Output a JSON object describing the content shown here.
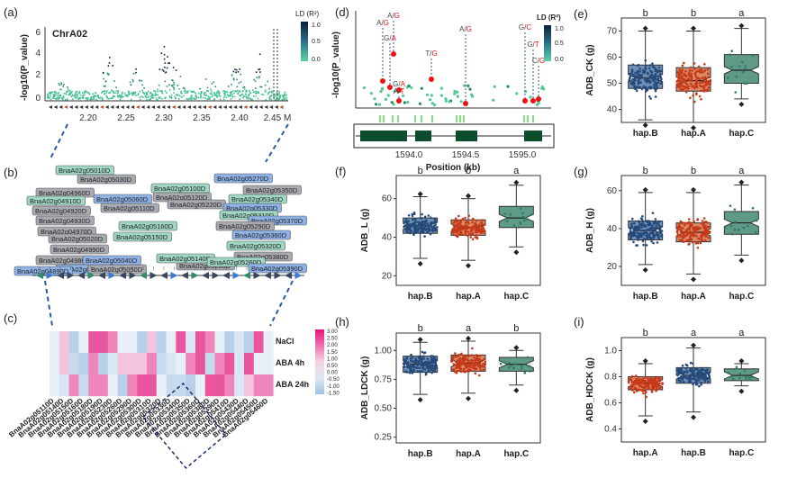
{
  "panels": {
    "a": {
      "label": "(a)",
      "chrom": "ChrA02",
      "ylabel": "-log10(P_value)",
      "yticks": [
        "0",
        "2",
        "4",
        "6"
      ],
      "xticks": [
        "2.20",
        "2.25",
        "2.30",
        "2.35",
        "2.40",
        "2.45 M"
      ],
      "legend_title": "LD (R²)",
      "legend_ticks": [
        "1.0",
        "0.5",
        "0.0"
      ]
    },
    "b": {
      "label": "(b)",
      "genes": [
        "BnaA02g05010D",
        "BnaA02g05030D",
        "BnaA02g05270D",
        "BnaA02g05100D",
        "BnaA02g05350D",
        "BnaA02g04960D",
        "BnaA02g04910D",
        "BnaA02g05060D",
        "BnaA02g05120D",
        "BnaA02g05340D",
        "BnaA02g04920D",
        "BnaA02g05220D",
        "BnaA02g05330D",
        "BnaA02g04930D",
        "BnaA02g05110D",
        "BnaA02g05310D",
        "BnaA02g04970D",
        "BnaA02g05370D",
        "BnaA02g05160D",
        "BnaA02g05290D",
        "BnaA02g05020D",
        "BnaA02g05150D",
        "BnaA02g05360D",
        "BnaA02g04990D",
        "BnaA02g05320D",
        "BnaA02g04980D",
        "BnaA02g05380D",
        "BnaA02g05000D",
        "BnaA02g05050D",
        "BnaA02g05230D",
        "BnaA02g05140D",
        "BnaA02g04890D",
        "BnaA02g05040D",
        "BnaA02g05260D",
        "BnaA02g05390D"
      ]
    },
    "c": {
      "label": "(c)",
      "rows": [
        "NaCl",
        "ABA 4h",
        "ABA 24h"
      ],
      "columns": [
        "BnaA02g05110D",
        "BnaA02g05140D",
        "BnaA02g05150D",
        "BnaA02g05160D",
        "BnaA02g05180D",
        "BnaA02g05190D",
        "BnaA02g05230D",
        "BnaA02g05260D",
        "BnaA02g05290D",
        "BnaA02g05300D",
        "BnaA02g05310D",
        "BnaA02g05320D",
        "BnaA02g05330D",
        "BnaA02g05340D",
        "BnaA02g05350D",
        "BnaA02g05360D",
        "BnaA02g05380D",
        "BnaA02g05390D",
        "BnaA02g05410D",
        "BnaA02g05430D",
        "BnaA02g05440D",
        "BnaA02g05450D",
        "BnaA02g05460D"
      ],
      "scale_ticks": [
        "3.00",
        "2.50",
        "2.00",
        "1.50",
        "1.00",
        "0.50",
        "0.00",
        "-0.50",
        "-1.00",
        "-1.50"
      ]
    },
    "d": {
      "label": "(d)",
      "ylabel": "-log10(P_value)",
      "xlabel": "Position (kb)",
      "xticks": [
        "1594.0",
        "1594.5",
        "1595.0"
      ],
      "legend_title": "LD (R²)",
      "legend_ticks": [
        "1.0",
        "0.5",
        "0.0"
      ],
      "snps": [
        "A/G",
        "A/G",
        "G/A",
        "G/A",
        "A/T",
        "T/G",
        "A/G",
        "G/C",
        "G/T",
        "C/G"
      ]
    }
  },
  "chart_data": [
    {
      "id": "e",
      "label": "(e)",
      "type": "box",
      "ylabel": "ADB_CK (g)",
      "yticks": [
        "40",
        "50",
        "60",
        "70"
      ],
      "ylim": [
        35,
        75
      ],
      "categories": [
        "hap.B",
        "hap.A",
        "hap.C"
      ],
      "significance": [
        "b",
        "b",
        "a"
      ],
      "boxes": [
        {
          "q1": 48,
          "median": 52,
          "q3": 57,
          "lo": 36,
          "hi": 70
        },
        {
          "q1": 47,
          "median": 51,
          "q3": 56,
          "lo": 35,
          "hi": 70
        },
        {
          "q1": 50,
          "median": 55,
          "q3": 61,
          "lo": 44,
          "hi": 71
        }
      ],
      "colors": [
        "#244a7a",
        "#c63a1a",
        "#2e7a66"
      ]
    },
    {
      "id": "f",
      "label": "(f)",
      "type": "box",
      "ylabel": "ADB_L (g)",
      "yticks": [
        "20",
        "40",
        "60"
      ],
      "ylim": [
        15,
        72
      ],
      "categories": [
        "hap.B",
        "hap.A",
        "hap.C"
      ],
      "significance": [
        "b",
        "b",
        "a"
      ],
      "boxes": [
        {
          "q1": 42,
          "median": 46,
          "q3": 50,
          "lo": 29,
          "hi": 61
        },
        {
          "q1": 41,
          "median": 45,
          "q3": 49,
          "lo": 28,
          "hi": 60
        },
        {
          "q1": 45,
          "median": 50,
          "q3": 56,
          "lo": 35,
          "hi": 67
        }
      ],
      "colors": [
        "#244a7a",
        "#c63a1a",
        "#2e7a66"
      ]
    },
    {
      "id": "g",
      "label": "(g)",
      "type": "box",
      "ylabel": "ADB_H (g)",
      "yticks": [
        "20",
        "40",
        "60"
      ],
      "ylim": [
        10,
        68
      ],
      "categories": [
        "hap.B",
        "hap.A",
        "hap.C"
      ],
      "significance": [
        "b",
        "b",
        "a"
      ],
      "boxes": [
        {
          "q1": 34,
          "median": 39,
          "q3": 44,
          "lo": 21,
          "hi": 59
        },
        {
          "q1": 33,
          "median": 38,
          "q3": 43,
          "lo": 16,
          "hi": 59
        },
        {
          "q1": 37,
          "median": 43,
          "q3": 49,
          "lo": 26,
          "hi": 63
        }
      ],
      "colors": [
        "#244a7a",
        "#c63a1a",
        "#2e7a66"
      ]
    },
    {
      "id": "h",
      "label": "(h)",
      "type": "box",
      "ylabel": "ADB_LDCK (g)",
      "yticks": [
        "0.25",
        "0.50",
        "0.75",
        "1.00"
      ],
      "ylim": [
        0.2,
        1.15
      ],
      "categories": [
        "hap.B",
        "hap.A",
        "hap.C"
      ],
      "significance": [
        "b",
        "a",
        "b"
      ],
      "boxes": [
        {
          "q1": 0.81,
          "median": 0.88,
          "q3": 0.95,
          "lo": 0.62,
          "hi": 1.07
        },
        {
          "q1": 0.82,
          "median": 0.89,
          "q3": 0.96,
          "lo": 0.63,
          "hi": 1.08
        },
        {
          "q1": 0.82,
          "median": 0.88,
          "q3": 0.94,
          "lo": 0.7,
          "hi": 1.0
        }
      ],
      "colors": [
        "#244a7a",
        "#c63a1a",
        "#2e7a66"
      ]
    },
    {
      "id": "i",
      "label": "(i)",
      "type": "box",
      "ylabel": "ADB_HDCK (g)",
      "yticks": [
        "0.4",
        "0.6",
        "0.8",
        "1.0"
      ],
      "ylim": [
        0.3,
        1.1
      ],
      "categories": [
        "hap.A",
        "hap.B",
        "hap.C"
      ],
      "significance": [
        "b",
        "a",
        "a"
      ],
      "boxes": [
        {
          "q1": 0.7,
          "median": 0.75,
          "q3": 0.8,
          "lo": 0.5,
          "hi": 0.9
        },
        {
          "q1": 0.75,
          "median": 0.81,
          "q3": 0.87,
          "lo": 0.53,
          "hi": 1.02
        },
        {
          "q1": 0.77,
          "median": 0.81,
          "q3": 0.86,
          "lo": 0.73,
          "hi": 0.9
        }
      ],
      "colors": [
        "#c63a1a",
        "#244a7a",
        "#2e7a66"
      ]
    }
  ]
}
